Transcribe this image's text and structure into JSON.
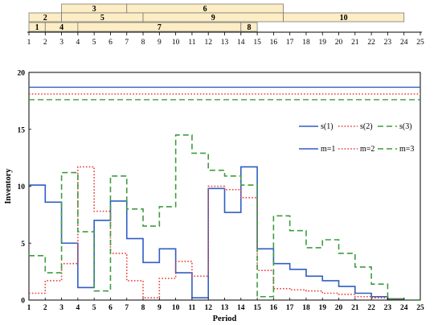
{
  "chart_data": [
    {
      "type": "gantt",
      "periods": [
        1,
        2,
        3,
        4,
        5,
        6,
        7,
        8,
        9,
        10,
        11,
        12,
        13,
        14,
        15,
        16,
        17,
        18,
        19,
        20,
        21,
        22,
        23,
        24,
        25
      ],
      "xlim": [
        1,
        25
      ],
      "rows": [
        {
          "tasks": [
            {
              "label": "3",
              "start": 3,
              "end": 7
            },
            {
              "label": "6",
              "start": 7,
              "end": 16.6
            }
          ]
        },
        {
          "tasks": [
            {
              "label": "2",
              "start": 1,
              "end": 3
            },
            {
              "label": "5",
              "start": 3,
              "end": 8
            },
            {
              "label": "9",
              "start": 8,
              "end": 16.6
            },
            {
              "label": "10",
              "start": 16.6,
              "end": 24
            }
          ]
        },
        {
          "tasks": [
            {
              "label": "1",
              "start": 1,
              "end": 2
            },
            {
              "label": "4",
              "start": 2,
              "end": 4
            },
            {
              "label": "7",
              "start": 4,
              "end": 14
            },
            {
              "label": "8",
              "start": 14,
              "end": 15
            }
          ]
        }
      ],
      "bar_color": "#fdedc4",
      "bar_edge": "#7a7a7a"
    },
    {
      "type": "line",
      "step": true,
      "xlabel": "Period",
      "ylabel": "Inventory",
      "x_ticks": [
        1,
        2,
        3,
        4,
        5,
        6,
        7,
        8,
        9,
        10,
        11,
        12,
        13,
        14,
        15,
        16,
        17,
        18,
        19,
        20,
        21,
        22,
        23,
        24,
        25
      ],
      "y_ticks": [
        0,
        5,
        10,
        15,
        20
      ],
      "xlim": [
        1,
        25
      ],
      "ylim": [
        0,
        20
      ],
      "grid": false,
      "legend_position": "right",
      "legend": [
        {
          "label": "s(1)",
          "color": "#2f5ec4",
          "style": "solid"
        },
        {
          "label": "s(2)",
          "color": "#e8403a",
          "style": "dotted"
        },
        {
          "label": "s(3)",
          "color": "#3f9c3f",
          "style": "dashed"
        },
        {
          "label": "m=1",
          "color": "#2f5ec4",
          "style": "solid"
        },
        {
          "label": "m=2",
          "color": "#e8403a",
          "style": "dotted"
        },
        {
          "label": "m=3",
          "color": "#3f9c3f",
          "style": "dashed"
        }
      ],
      "thresholds": [
        {
          "name": "s(1)",
          "value": 18.7,
          "color": "#2f5ec4",
          "style": "solid"
        },
        {
          "name": "s(2)",
          "value": 18.1,
          "color": "#e8403a",
          "style": "dotted"
        },
        {
          "name": "s(3)",
          "value": 17.6,
          "color": "#3f9c3f",
          "style": "dashed"
        }
      ],
      "series": [
        {
          "name": "m=1",
          "color": "#2f5ec4",
          "style": "solid",
          "x": [
            1,
            2,
            3,
            4,
            5,
            6,
            7,
            8,
            9,
            10,
            11,
            12,
            13,
            14,
            15,
            16,
            17,
            18,
            19,
            20,
            21,
            22,
            23,
            24
          ],
          "values": [
            10.1,
            8.6,
            5.0,
            1.1,
            7.0,
            8.7,
            5.4,
            3.3,
            4.5,
            2.4,
            0.2,
            9.8,
            7.7,
            11.7,
            4.5,
            3.2,
            2.7,
            2.1,
            1.7,
            1.2,
            0.6,
            0.3,
            0.1,
            0.0
          ]
        },
        {
          "name": "m=2",
          "color": "#e8403a",
          "style": "dotted",
          "x": [
            1,
            2,
            3,
            4,
            5,
            6,
            7,
            8,
            9,
            10,
            11,
            12,
            13,
            14,
            15,
            16,
            17,
            18,
            19,
            20,
            21,
            22,
            23,
            24
          ],
          "values": [
            0.6,
            1.7,
            3.2,
            11.7,
            7.8,
            4.1,
            1.7,
            0.2,
            1.9,
            3.4,
            2.1,
            10.0,
            9.7,
            9.0,
            2.6,
            1.0,
            0.9,
            0.8,
            0.6,
            0.5,
            0.3,
            0.2,
            0.1,
            0.0
          ]
        },
        {
          "name": "m=3",
          "color": "#3f9c3f",
          "style": "dashed",
          "x": [
            1,
            2,
            3,
            4,
            5,
            6,
            7,
            8,
            9,
            10,
            11,
            12,
            13,
            14,
            15,
            16,
            17,
            18,
            19,
            20,
            21,
            22,
            23,
            24
          ],
          "values": [
            3.9,
            2.4,
            11.2,
            6.0,
            0.8,
            10.9,
            8.0,
            6.5,
            8.2,
            14.5,
            12.9,
            11.4,
            10.9,
            10.1,
            0.3,
            7.4,
            6.1,
            4.6,
            5.3,
            4.1,
            2.9,
            1.4,
            0.1,
            0.0
          ]
        }
      ]
    }
  ]
}
